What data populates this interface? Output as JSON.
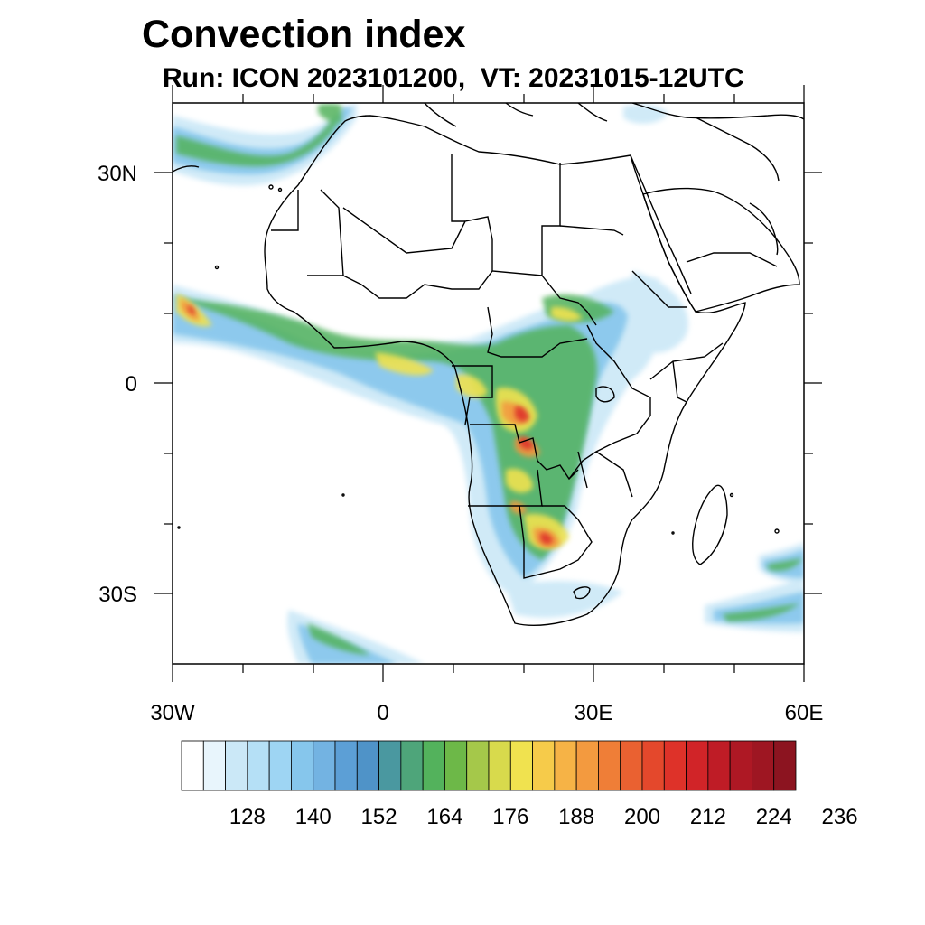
{
  "title": "Convection index",
  "subtitle": "Run: ICON 2023101200,  VT: 20231015-12UTC",
  "axes": {
    "lat_labels": [
      "30N",
      "0",
      "30S"
    ],
    "lon_labels": [
      "30W",
      "0",
      "30E",
      "60E"
    ]
  },
  "colorbar": {
    "labels": [
      "128",
      "140",
      "152",
      "164",
      "176",
      "188",
      "200",
      "212",
      "224",
      "236"
    ],
    "colors": [
      "#ffffff",
      "#e8f5fc",
      "#cbe8f7",
      "#b5e0f6",
      "#9ed5f3",
      "#86c6ec",
      "#73b3e2",
      "#5c9fd6",
      "#4f93c8",
      "#4a98a0",
      "#4ea57a",
      "#53b25c",
      "#6db848",
      "#a5c84a",
      "#d8da4c",
      "#f0e24f",
      "#f6cb4a",
      "#f6b346",
      "#f39a3f",
      "#ef7e37",
      "#ea6131",
      "#e4482c",
      "#de3229",
      "#d12428",
      "#bf1c26",
      "#ae1824",
      "#9e1622",
      "#8c1420"
    ]
  },
  "colors": {
    "land_border": "#000000",
    "background": "#ffffff"
  }
}
